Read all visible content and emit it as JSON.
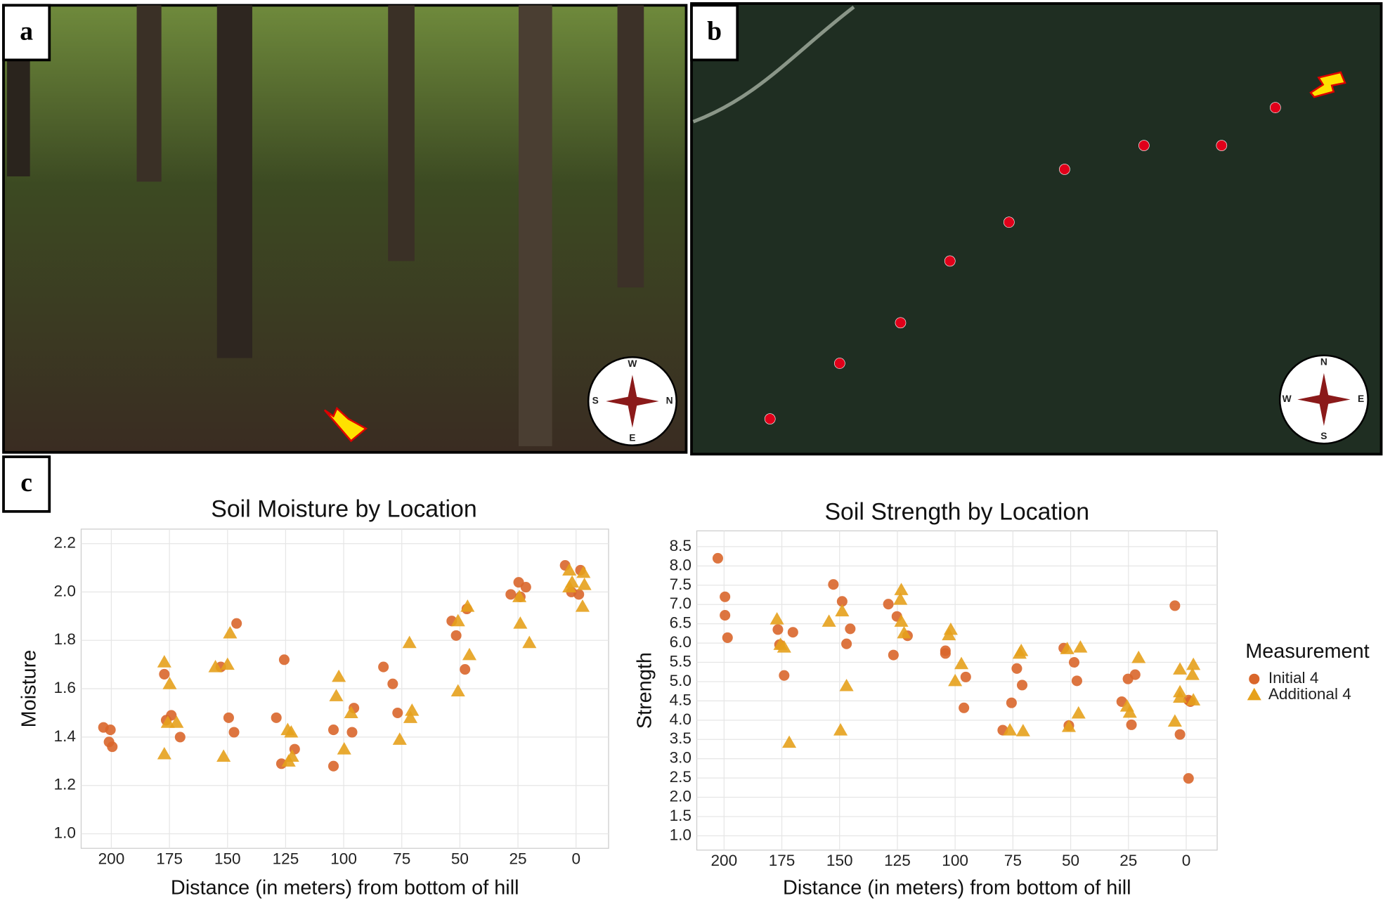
{
  "panels": [
    {
      "label": "a",
      "compass": [
        "W",
        "N",
        "E",
        "S"
      ]
    },
    {
      "label": "b",
      "compass": [
        "N",
        "E",
        "S",
        "W"
      ]
    },
    {
      "label": "c"
    }
  ],
  "chart_data": [
    {
      "type": "scatter",
      "title": "Soil Moisture by Location",
      "xlabel": "Distance (in meters) from bottom of hill",
      "ylabel": "Moisture",
      "xlim": [
        213,
        -14
      ],
      "xticks": [
        200,
        175,
        150,
        125,
        100,
        75,
        50,
        25,
        0
      ],
      "ylim": [
        0.94,
        2.26
      ],
      "yticks": [
        {
          "value": 1.0,
          "label": "1.0"
        },
        1.2,
        1.4,
        1.6,
        1.8,
        {
          "value": 2.0,
          "label": "2.0"
        },
        2.2
      ],
      "grid": true,
      "series": [
        {
          "color": "#d9662b",
          "marker": "circle",
          "x": [
            203.4,
            200.4,
            201,
            199.6,
            177.2,
            176.4,
            174.2,
            170.4,
            152.9,
            146.1,
            149.5,
            147.2,
            129,
            125.6,
            126.8,
            121.1,
            104.4,
            104.4,
            95.6,
            96.4,
            82.9,
            78.9,
            76.8,
            53.5,
            51.6,
            47.8,
            47,
            28.1,
            24.7,
            21.6,
            24,
            4.7,
            -1.9,
            2.0,
            -1.2
          ],
          "values": [
            1.44,
            1.43,
            1.38,
            1.36,
            1.66,
            1.47,
            1.49,
            1.4,
            1.69,
            1.87,
            1.48,
            1.42,
            1.48,
            1.72,
            1.29,
            1.35,
            1.28,
            1.43,
            1.52,
            1.42,
            1.69,
            1.62,
            1.5,
            1.88,
            1.82,
            1.68,
            1.93,
            1.99,
            2.04,
            2.02,
            1.98,
            2.11,
            2.09,
            2.0,
            1.99
          ]
        },
        {
          "color": "#e6a11c",
          "marker": "triangle",
          "x": [
            177.2,
            174.9,
            177.2,
            175.7,
            171.9,
            155.2,
            150,
            148.9,
            151.7,
            124.1,
            122.6,
            123.7,
            122.2,
            102.1,
            103.2,
            99.8,
            96.8,
            71.7,
            75.9,
            70.6,
            71.3,
            50.8,
            45.9,
            46.7,
            50.8,
            24,
            20.1,
            24.4,
            2.9,
            1.7,
            -3.2,
            -3.6,
            -2.8,
            2.9
          ],
          "values": [
            1.71,
            1.62,
            1.33,
            1.46,
            1.46,
            1.69,
            1.7,
            1.83,
            1.32,
            1.43,
            1.42,
            1.3,
            1.32,
            1.65,
            1.57,
            1.35,
            1.5,
            1.79,
            1.39,
            1.51,
            1.48,
            1.88,
            1.74,
            1.94,
            1.59,
            1.87,
            1.79,
            1.98,
            2.09,
            2.04,
            2.08,
            2.03,
            1.94,
            2.02
          ]
        }
      ]
    },
    {
      "type": "scatter",
      "title": "Soil Strength by Location",
      "xlabel": "Distance (in meters) from bottom of hill",
      "ylabel": "Strength",
      "xlim": [
        211.8,
        -13.4
      ],
      "xticks": [
        200,
        175,
        150,
        125,
        100,
        75,
        50,
        25,
        0
      ],
      "ylim": [
        0.63,
        8.91
      ],
      "yticks": [
        {
          "value": 1.0,
          "label": "1.0"
        },
        1.5,
        {
          "value": 2.0,
          "label": "2.0"
        },
        2.5,
        {
          "value": 3.0,
          "label": "3.0"
        },
        3.5,
        {
          "value": 4.0,
          "label": "4.0"
        },
        4.5,
        {
          "value": 5.0,
          "label": "5.0"
        },
        5.5,
        {
          "value": 6.0,
          "label": "6.0"
        },
        6.5,
        {
          "value": 7.0,
          "label": "7.0"
        },
        7.5,
        {
          "value": 8.0,
          "label": "8.0"
        },
        8.5
      ],
      "grid": true,
      "legend": "right",
      "legend_title": "Measurement",
      "series": [
        {
          "name": "Initial 4",
          "color": "#d9662b",
          "marker": "circle",
          "x": [
            202.7,
            199.6,
            199.6,
            198.5,
            176.7,
            176,
            174,
            170.2,
            152.7,
            148.9,
            147,
            145.4,
            128.9,
            126.7,
            125.2,
            120.6,
            104.2,
            104.2,
            95.4,
            96.2,
            79.4,
            75.6,
            73.3,
            71,
            53,
            50.8,
            48.5,
            47.3,
            27.9,
            25.2,
            23.7,
            22.1,
            4.9,
            2.7,
            -1,
            -1.8,
            -1
          ],
          "values": [
            8.2,
            7.2,
            6.72,
            6.14,
            6.35,
            5.96,
            5.16,
            6.28,
            7.52,
            7.08,
            5.98,
            6.37,
            7.01,
            5.69,
            6.69,
            6.19,
            5.8,
            5.73,
            5.12,
            4.32,
            3.74,
            4.45,
            5.34,
            4.91,
            5.87,
            3.86,
            5.5,
            5.02,
            4.48,
            5.07,
            3.88,
            5.18,
            6.97,
            3.63,
            4.52,
            4.48,
            2.49
          ]
        },
        {
          "name": "Additional 4",
          "color": "#e6a11c",
          "marker": "triangle",
          "x": [
            177.1,
            175.6,
            174,
            171.8,
            154.6,
            148.9,
            147,
            149.6,
            123.3,
            123.7,
            123.3,
            122.1,
            101.9,
            102.7,
            97.3,
            100,
            71.4,
            72.1,
            76.3,
            70.6,
            51.5,
            45.8,
            46.6,
            50.8,
            25.6,
            24.4,
            20.6,
            2.7,
            -2.7,
            -3.1,
            2.7,
            2.7,
            4.9,
            -3.1
          ],
          "values": [
            6.62,
            5.96,
            5.89,
            3.42,
            6.56,
            6.83,
            4.89,
            3.74,
            7.38,
            7.13,
            6.56,
            6.26,
            6.35,
            6.21,
            5.46,
            5.02,
            5.8,
            5.73,
            3.74,
            3.72,
            5.85,
            5.89,
            4.18,
            3.83,
            4.36,
            4.2,
            5.62,
            5.32,
            5.18,
            5.44,
            4.73,
            4.59,
            3.97,
            4.52
          ]
        }
      ]
    }
  ]
}
